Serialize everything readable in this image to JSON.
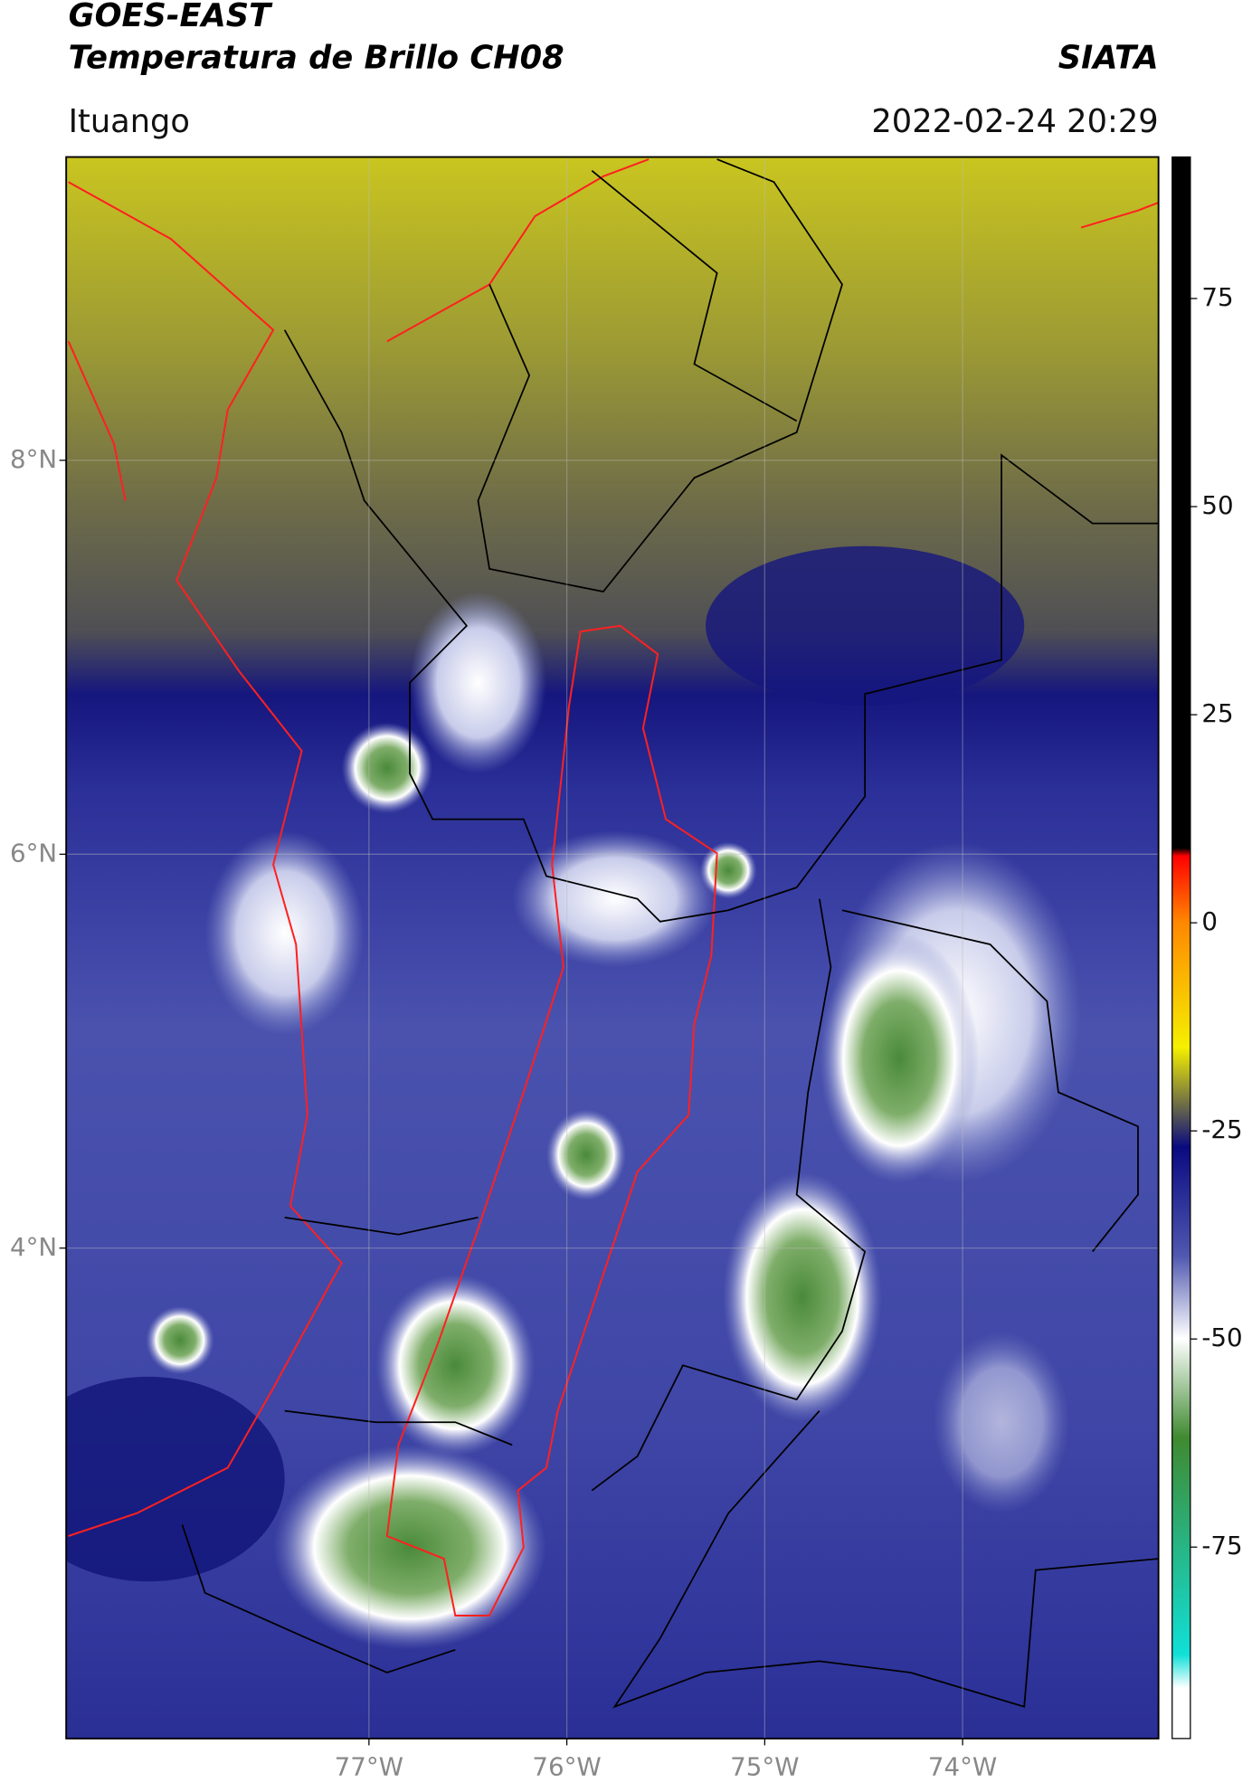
{
  "header": {
    "title": "GOES-EAST",
    "subtitle": "Temperatura de Brillo CH08",
    "agency": "SIATA",
    "region": "Ituango",
    "datetime": "2022-02-24 20:29"
  },
  "map": {
    "xlim": [
      -78.53,
      -73.01
    ],
    "ylim": [
      1.51,
      9.54
    ],
    "xticks": [
      {
        "value": -77,
        "label": "77°W"
      },
      {
        "value": -76,
        "label": "76°W"
      },
      {
        "value": -75,
        "label": "75°W"
      },
      {
        "value": -74,
        "label": "74°W"
      }
    ],
    "yticks": [
      {
        "value": 4,
        "label": "4°N"
      },
      {
        "value": 6,
        "label": "6°N"
      },
      {
        "value": 8,
        "label": "8°N"
      }
    ],
    "grid": true
  },
  "colorbar": {
    "lim": [
      -98,
      92
    ],
    "ticks": [
      -75,
      -50,
      -25,
      0,
      25,
      50,
      75
    ]
  }
}
